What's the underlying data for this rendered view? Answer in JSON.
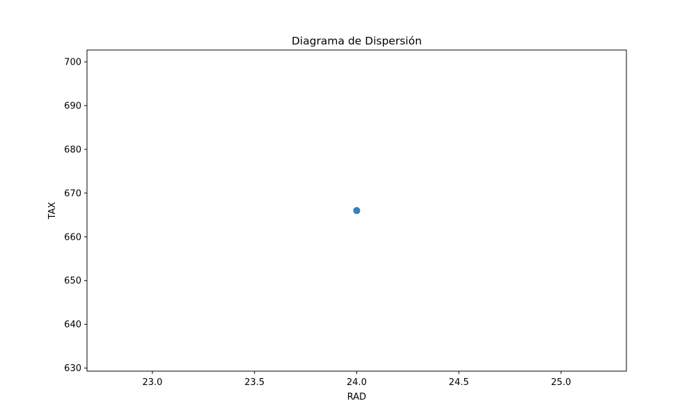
{
  "chart_data": {
    "type": "scatter",
    "title": "Diagrama de Dispersión",
    "xlabel": "RAD",
    "ylabel": "TAX",
    "xlim": [
      22.68,
      25.32
    ],
    "ylim": [
      629.3,
      702.7
    ],
    "grid": false,
    "xticks": [
      "23.0",
      "23.5",
      "24.0",
      "24.5",
      "25.0"
    ],
    "yticks": [
      "630",
      "640",
      "650",
      "660",
      "670",
      "680",
      "690",
      "700"
    ],
    "series": [
      {
        "color": "#1f77b4",
        "points": [
          {
            "x": 24,
            "y": 666
          }
        ]
      }
    ]
  }
}
